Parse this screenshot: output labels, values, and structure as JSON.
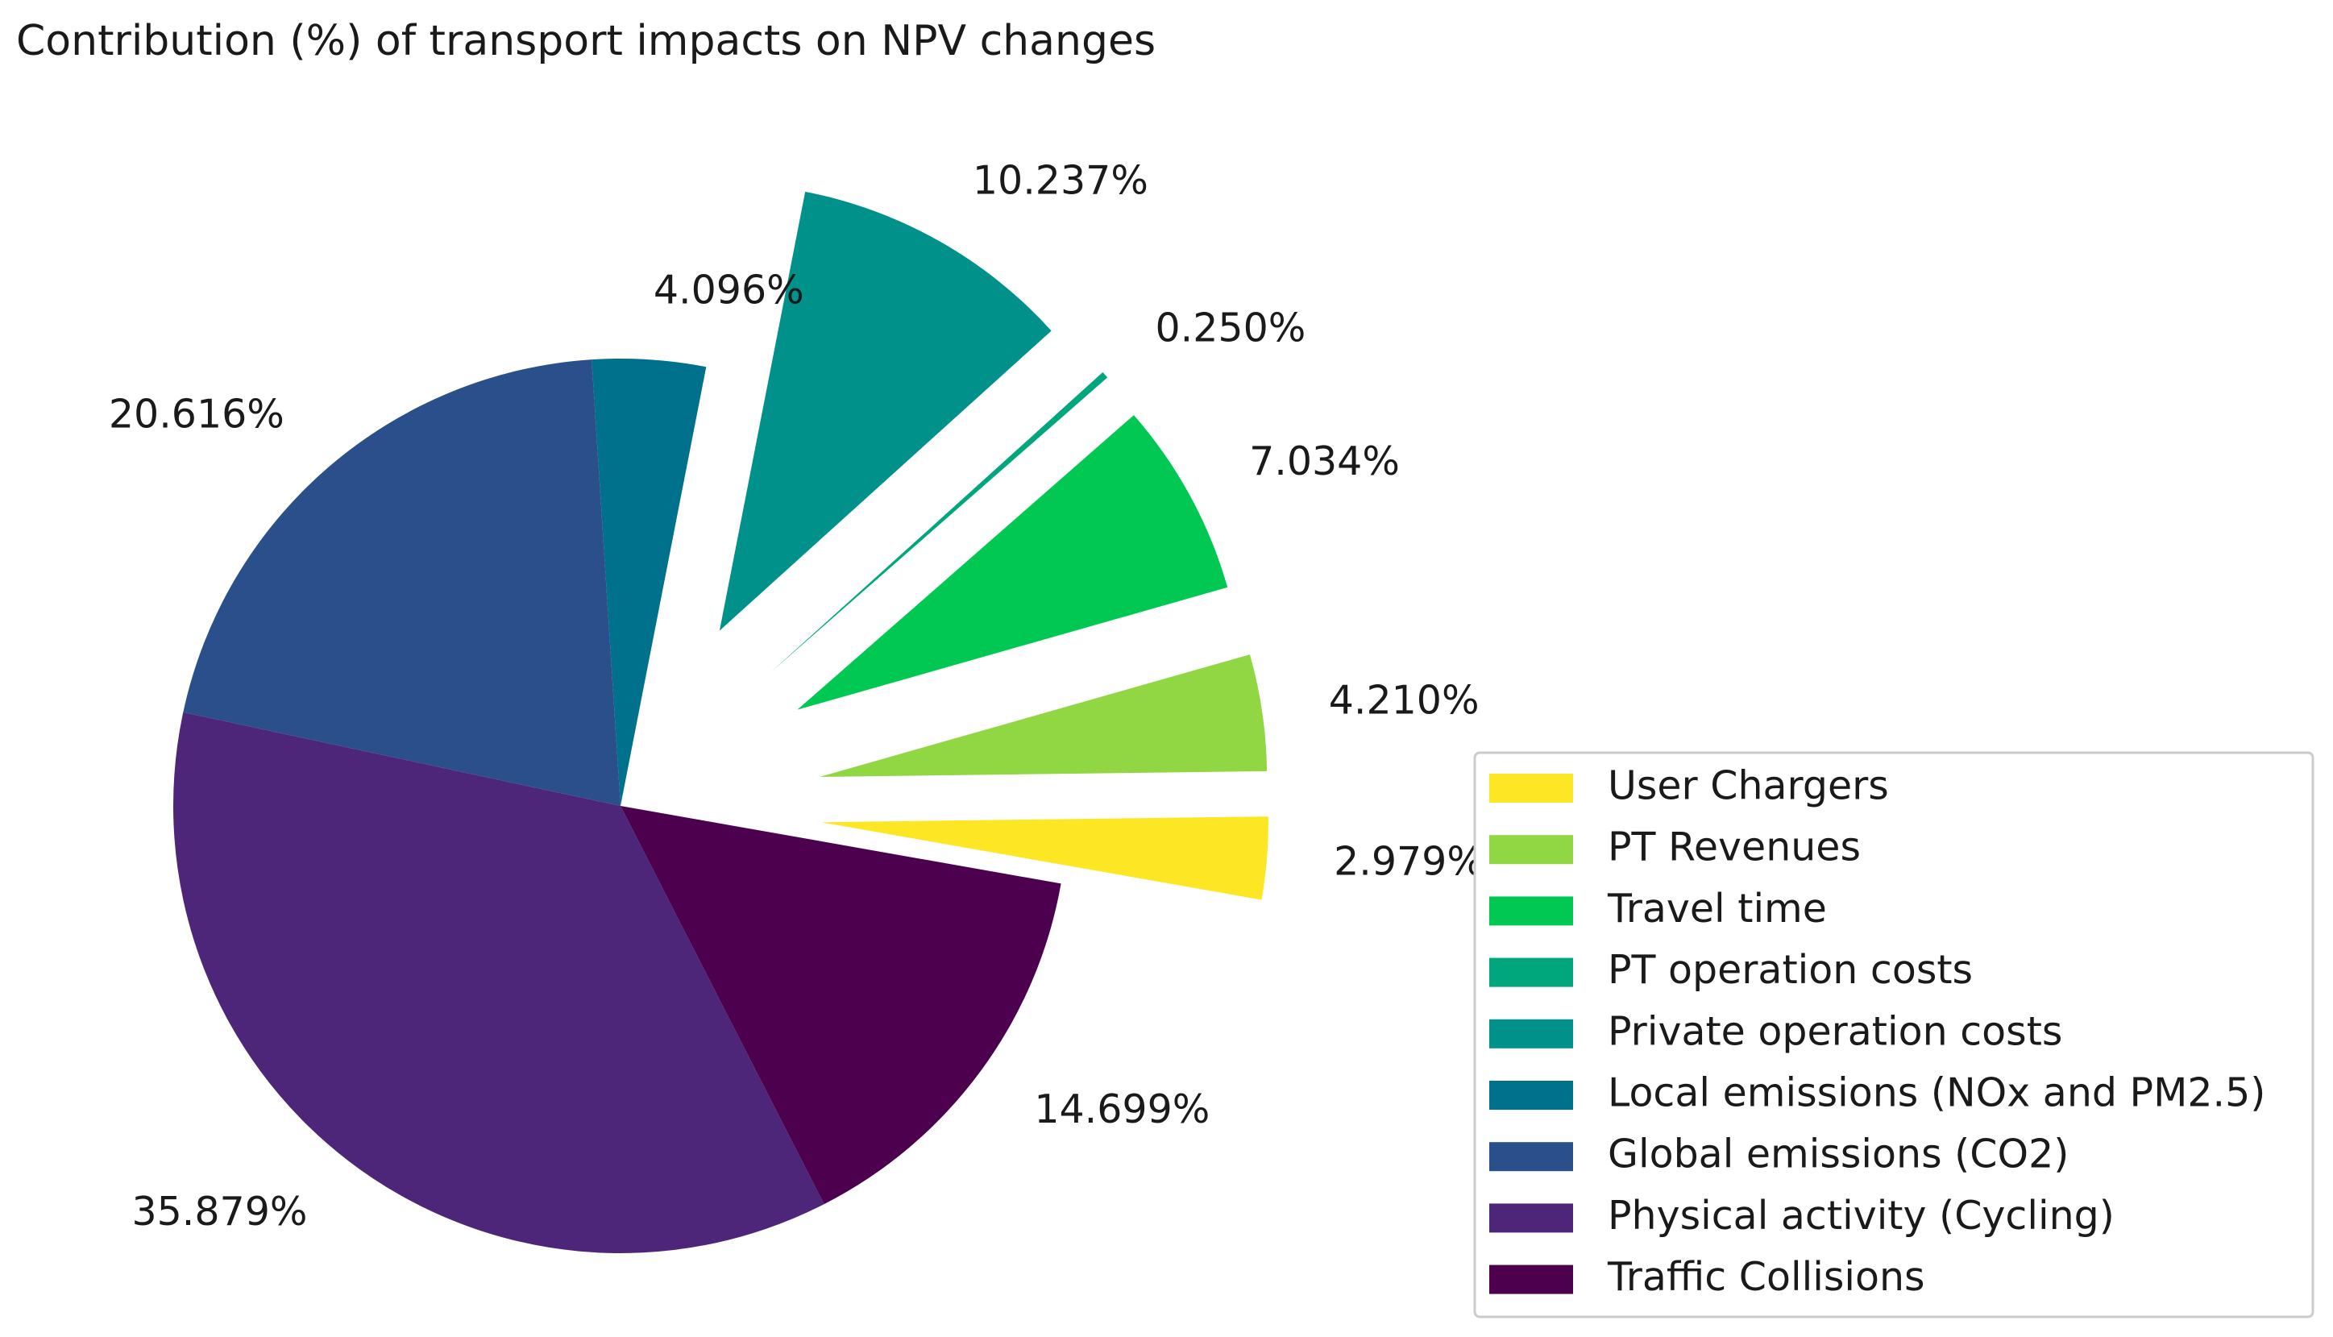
{
  "chart_data": {
    "type": "pie",
    "title": "Contribution (%) of transport impacts on NPV changes",
    "legend_position": "lower-right",
    "slices": [
      {
        "label": "User Chargers",
        "value": 2.979,
        "pct_label": "2.979%",
        "color": "#fde725",
        "exploded": true
      },
      {
        "label": "PT Revenues",
        "value": 4.21,
        "pct_label": "4.210%",
        "color": "#90d743",
        "exploded": true
      },
      {
        "label": "Travel time",
        "value": 7.034,
        "pct_label": "7.034%",
        "color": "#00c853",
        "exploded": true
      },
      {
        "label": "PT operation costs",
        "value": 0.25,
        "pct_label": "0.250%",
        "color": "#00a77d",
        "exploded": true
      },
      {
        "label": "Private operation costs",
        "value": 10.237,
        "pct_label": "10.237%",
        "color": "#00918a",
        "exploded": true
      },
      {
        "label": "Local emissions (NOx and PM2.5)",
        "value": 4.096,
        "pct_label": "4.096%",
        "color": "#00718c",
        "exploded": false
      },
      {
        "label": "Global emissions (CO2)",
        "value": 20.616,
        "pct_label": "20.616%",
        "color": "#2b4f8a",
        "exploded": false
      },
      {
        "label": "Physical activity (Cycling)",
        "value": 35.879,
        "pct_label": "35.879%",
        "color": "#4e2679",
        "exploded": false
      },
      {
        "label": "Traffic Collisions",
        "value": 14.699,
        "pct_label": "14.699%",
        "color": "#4d004e",
        "exploded": false
      }
    ]
  }
}
